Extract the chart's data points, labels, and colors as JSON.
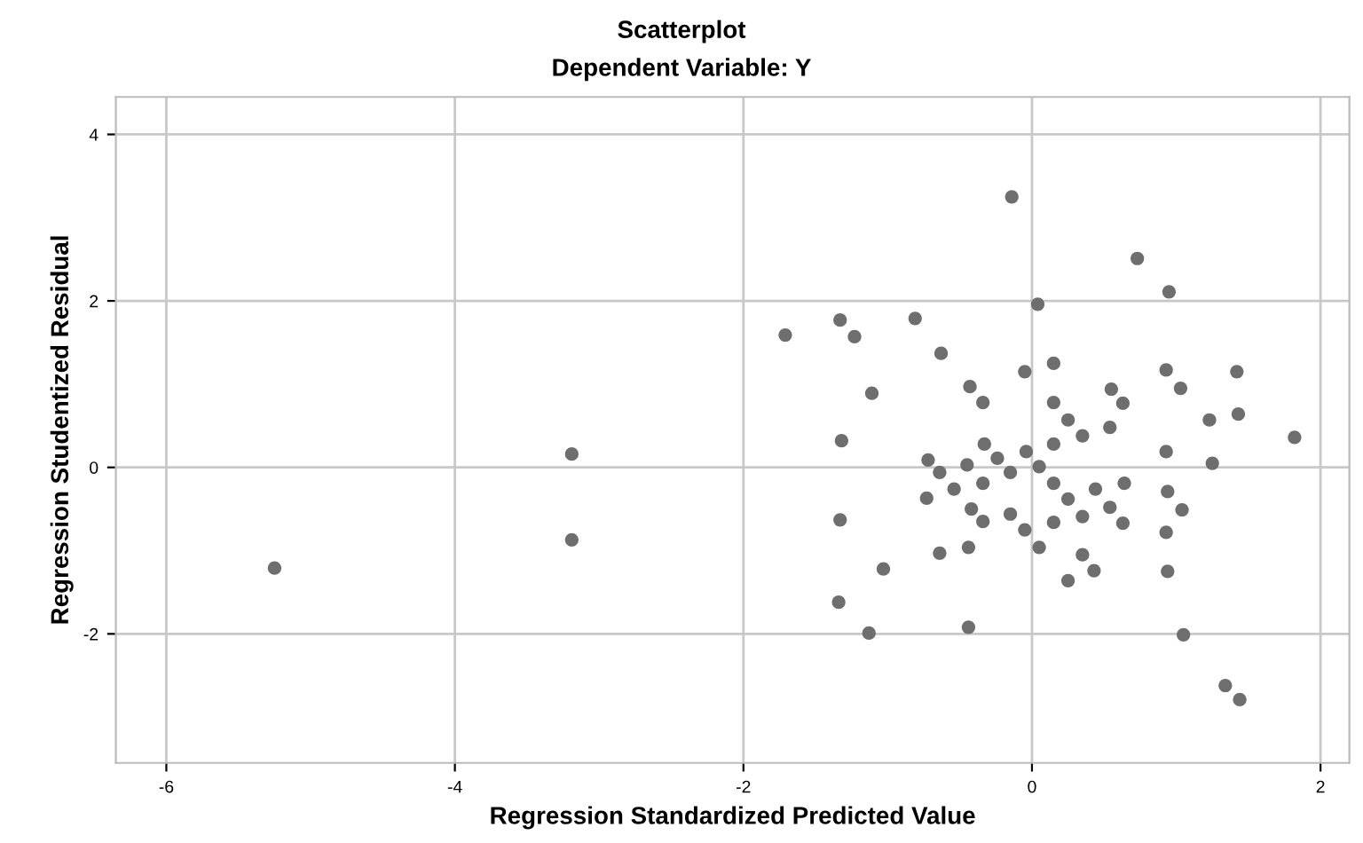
{
  "chart_data": {
    "type": "scatter",
    "title": "Scatterplot",
    "subtitle": "Dependent Variable: Y",
    "xlabel": "Regression Standardized Predicted Value",
    "ylabel": "Regression Studentized Residual",
    "xlim": [
      -6.35,
      2.2
    ],
    "ylim": [
      -3.55,
      4.45
    ],
    "xticks": [
      -6,
      -4,
      -2,
      0,
      2
    ],
    "yticks": [
      -2,
      0,
      2,
      4
    ],
    "grid": true,
    "marker": "circle",
    "series": [
      {
        "color": "#6e6e6e",
        "x": [
          -0.14,
          0.04,
          -1.71,
          -1.33,
          -1.23,
          -0.81,
          -0.63,
          -0.05,
          0.15,
          -1.11,
          -0.43,
          -0.34,
          0.15,
          0.25,
          0.35,
          -1.32,
          -0.33,
          -0.24,
          -0.04,
          0.15,
          -0.72,
          -0.45,
          0.05,
          -0.64,
          -0.15,
          -0.34,
          0.15,
          -0.54,
          0.44,
          -0.73,
          0.25,
          -0.42,
          -1.33,
          -0.34,
          -0.15,
          0.15,
          0.35,
          -0.05,
          -0.64,
          -0.44,
          0.05,
          0.35,
          -1.03,
          0.43,
          0.25,
          -1.34,
          -1.13,
          -0.44,
          0.73,
          0.95,
          0.93,
          1.42,
          0.55,
          1.03,
          0.63,
          1.23,
          1.43,
          0.54,
          0.93,
          1.25,
          1.82,
          0.64,
          0.94,
          0.54,
          0.63,
          1.04,
          0.93,
          0.94,
          1.05,
          1.34,
          1.44,
          -5.25,
          -3.19,
          -3.19
        ],
        "values": [
          3.25,
          1.96,
          1.59,
          1.77,
          1.57,
          1.79,
          1.37,
          1.15,
          1.25,
          0.89,
          0.97,
          0.78,
          0.78,
          0.57,
          0.38,
          0.32,
          0.28,
          0.11,
          0.19,
          0.28,
          0.09,
          0.03,
          0.01,
          -0.06,
          -0.06,
          -0.19,
          -0.19,
          -0.26,
          -0.26,
          -0.37,
          -0.38,
          -0.5,
          -0.63,
          -0.65,
          -0.56,
          -0.66,
          -0.59,
          -0.75,
          -1.03,
          -0.96,
          -0.96,
          -1.05,
          -1.22,
          -1.24,
          -1.36,
          -1.62,
          -1.99,
          -1.92,
          2.51,
          2.11,
          1.17,
          1.15,
          0.94,
          0.95,
          0.77,
          0.57,
          0.64,
          0.48,
          0.19,
          0.05,
          0.36,
          -0.19,
          -0.29,
          -0.48,
          -0.67,
          -0.51,
          -0.78,
          -1.25,
          -2.01,
          -2.62,
          -2.79,
          -1.21,
          0.16,
          -0.87
        ]
      }
    ]
  }
}
